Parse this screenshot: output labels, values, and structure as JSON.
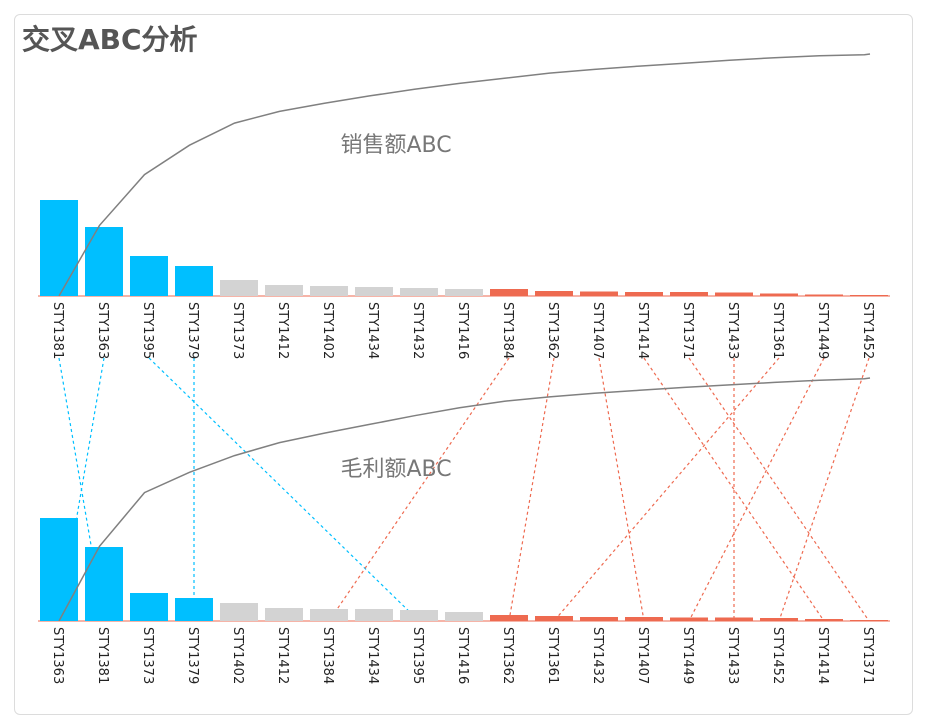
{
  "title": "交叉ABC分析",
  "colors": {
    "A": "#00BFFF",
    "B": "#D3D3D3",
    "C": "#EE6A50",
    "curve": "#808080",
    "line_C": "#EE6A50",
    "line_A": "#00BFFF"
  },
  "chart_data": [
    {
      "type": "bar",
      "title": "销售额ABC",
      "categories": [
        "STY1381",
        "STY1363",
        "STY1395",
        "STY1379",
        "STY1373",
        "STY1412",
        "STY1402",
        "STY1434",
        "STY1432",
        "STY1416",
        "STY1384",
        "STY1362",
        "STY1407",
        "STY1414",
        "STY1371",
        "STY1433",
        "STY1361",
        "STY1449",
        "STY1452"
      ],
      "classes": [
        "A",
        "A",
        "A",
        "A",
        "B",
        "B",
        "B",
        "B",
        "B",
        "B",
        "C",
        "C",
        "C",
        "C",
        "C",
        "C",
        "C",
        "C",
        "C"
      ],
      "values": [
        96,
        69,
        40,
        30,
        16,
        11,
        10,
        9,
        8,
        7,
        7,
        5,
        4.5,
        4,
        4,
        3.5,
        2.5,
        1.5,
        1
      ],
      "cumulative_curve": true
    },
    {
      "type": "bar",
      "title": "毛利额ABC",
      "categories": [
        "STY1363",
        "STY1381",
        "STY1373",
        "STY1379",
        "STY1402",
        "STY1412",
        "STY1384",
        "STY1434",
        "STY1395",
        "STY1416",
        "STY1362",
        "STY1361",
        "STY1432",
        "STY1407",
        "STY1449",
        "STY1433",
        "STY1452",
        "STY1414",
        "STY1371"
      ],
      "classes": [
        "A",
        "A",
        "A",
        "A",
        "B",
        "B",
        "B",
        "B",
        "B",
        "B",
        "C",
        "C",
        "C",
        "C",
        "C",
        "C",
        "C",
        "C",
        "C"
      ],
      "values": [
        103,
        74,
        28,
        23,
        18,
        13,
        12,
        12,
        11,
        9,
        6,
        5,
        4,
        4,
        3.5,
        3.5,
        3,
        2,
        1
      ],
      "cumulative_curve": true
    }
  ]
}
